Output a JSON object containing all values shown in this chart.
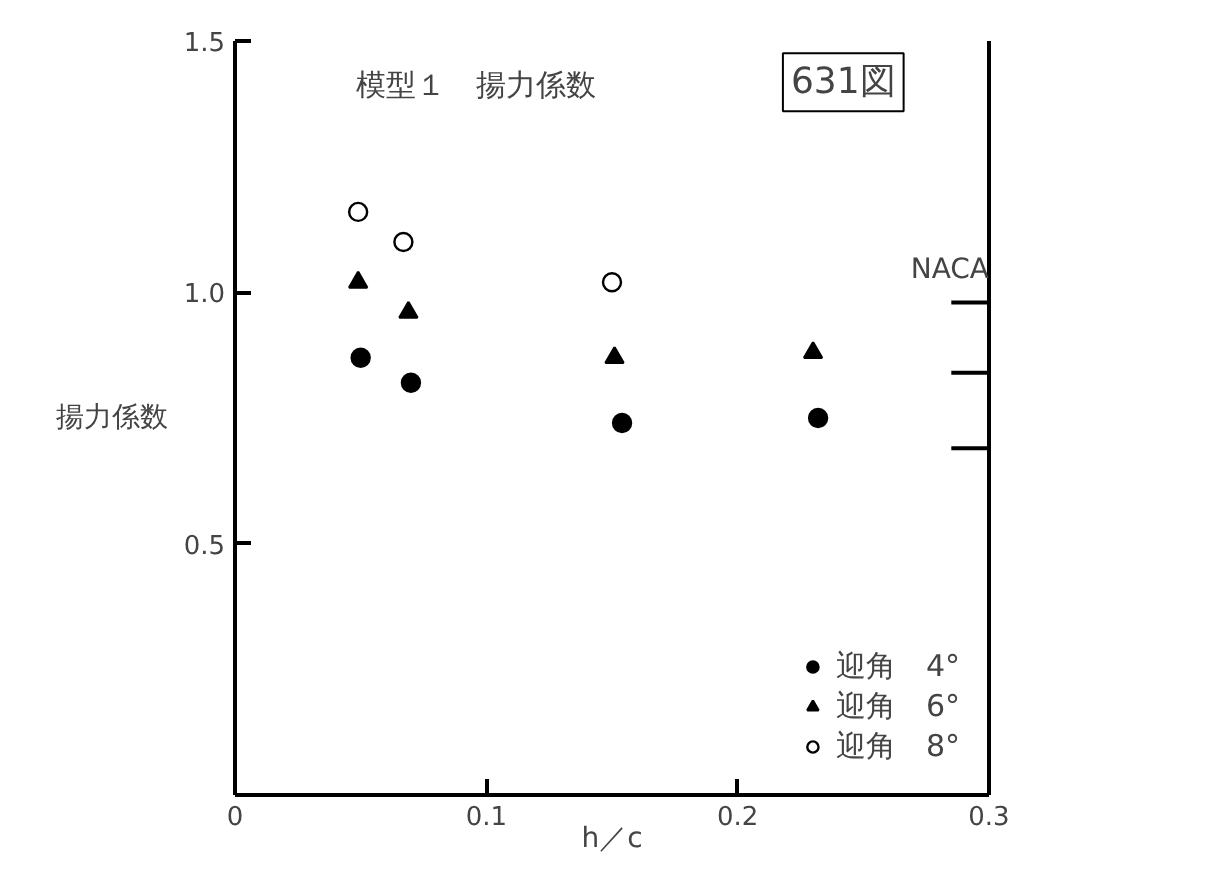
{
  "chart_data": {
    "type": "scatter",
    "xlabel": "h／c",
    "ylabel": "揚力係数",
    "annotations": [
      "模型１　揚力係数",
      "631図"
    ],
    "xlim": [
      0,
      0.3
    ],
    "ylim": [
      0,
      1.5
    ],
    "xticks": [
      {
        "value": 0,
        "label": "0"
      },
      0.1,
      0.2,
      0.3
    ],
    "yticks": [
      {
        "value": 0.5,
        "label": "0.5"
      },
      {
        "value": 1.0,
        "label": "1.0"
      },
      {
        "value": 1.5,
        "label": "1.5"
      }
    ],
    "grid": false,
    "legend": "bottom right",
    "series": [
      {
        "name": "迎角　4°",
        "color": "#000000",
        "marker": "circle",
        "x": [
          0.05,
          0.07,
          0.154,
          0.232
        ],
        "values": [
          0.87,
          0.82,
          0.74,
          0.75
        ]
      },
      {
        "name": "迎角　6°",
        "color": "#000000",
        "marker": "triangle",
        "x": [
          0.049,
          0.069,
          0.151,
          0.23
        ],
        "values": [
          1.02,
          0.96,
          0.87,
          0.88
        ]
      },
      {
        "name": "迎角　8°",
        "color": "#ffffff",
        "marker": "circle",
        "x": [
          0.049,
          0.067,
          0.15
        ],
        "values": [
          1.16,
          1.1,
          1.02
        ]
      },
      {
        "name": "NACA",
        "type": "line",
        "color": "#000000",
        "x": [
          0.285,
          0.3
        ],
        "values": [
          0.98,
          0.98
        ]
      },
      {
        "type": "line",
        "color": "#000000",
        "x": [
          0.285,
          0.3
        ],
        "values": [
          0.84,
          0.84
        ]
      },
      {
        "type": "line",
        "color": "#000000",
        "x": [
          0.285,
          0.3
        ],
        "values": [
          0.69,
          0.69
        ]
      }
    ]
  }
}
